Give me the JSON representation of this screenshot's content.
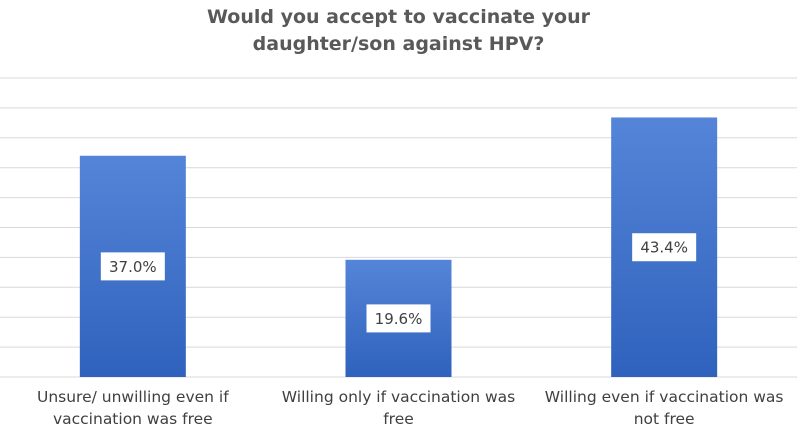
{
  "chart_data": {
    "type": "bar",
    "title": "Would you accept to vaccinate your daughter/son against HPV?",
    "categories": [
      "Unsure/ unwilling even if vaccination was free",
      "Willing only if vaccination was free",
      "Willing even if vaccination was not free"
    ],
    "values": [
      37.0,
      19.6,
      43.4
    ],
    "value_labels": [
      "37.0%",
      "19.6%",
      "43.4%"
    ],
    "color": "#3f72cc",
    "ylim": [
      0,
      50
    ],
    "yticks": [
      0,
      5,
      10,
      15,
      20,
      25,
      30,
      35,
      40,
      45,
      50
    ],
    "grid": true
  }
}
